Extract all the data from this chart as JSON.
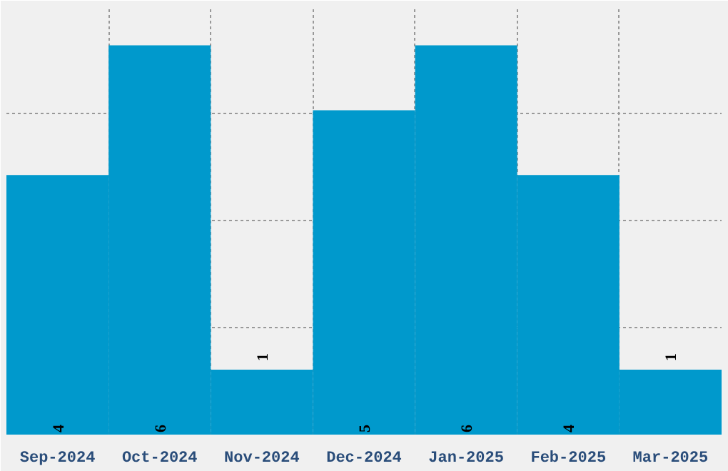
{
  "chart_data": {
    "type": "bar",
    "categories": [
      "Sep-2024",
      "Oct-2024",
      "Nov-2024",
      "Dec-2024",
      "Jan-2025",
      "Feb-2025",
      "Mar-2025"
    ],
    "values": [
      4,
      6,
      1,
      5,
      6,
      4,
      1
    ],
    "color": "#0099cc",
    "data_labels": true,
    "tick_labels": "x",
    "grid": true,
    "ylim": [
      0,
      6.6
    ],
    "yticks": [
      {
        "value": 1.65,
        "label": null
      },
      {
        "value": 3.3,
        "label": null
      },
      {
        "value": 4.95,
        "label": null
      }
    ]
  }
}
